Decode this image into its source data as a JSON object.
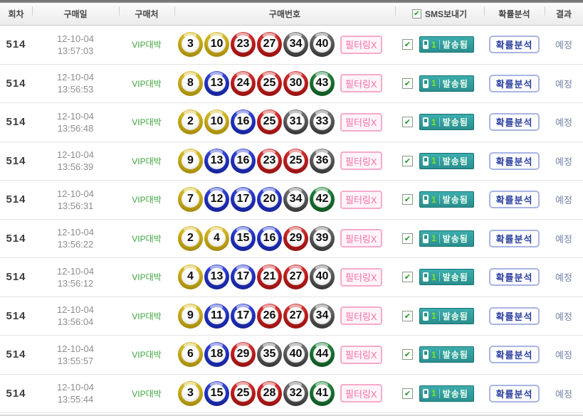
{
  "header": {
    "col_round": "회차",
    "col_date": "구매일",
    "col_store": "구매처",
    "col_numbers": "구매번호",
    "col_sms": "SMS보내기",
    "col_prob": "확률분석",
    "col_result": "결과",
    "sms_checkbox_checked": true
  },
  "labels": {
    "filter_button": "필터링X",
    "sms_sent_button": "발송됨",
    "sms_count": "1",
    "prob_button": "확률분석",
    "check_glyph": "✔"
  },
  "colors": {
    "ball_yellow": "#c8ab16",
    "ball_blue": "#2232c2",
    "ball_red": "#bf1d1d",
    "ball_gray": "#5c5c5c",
    "ball_green": "#187130",
    "store_green": "#3fa53f",
    "sms_teal": "#2f9f9f",
    "filter_pink": "#f470a6",
    "prob_blue": "#2b3f9e",
    "result_blue_gray": "#7384a8"
  },
  "rows": [
    {
      "round": "514",
      "date": "12-10-04",
      "time": "13:57:03",
      "store": "VIP대박",
      "numbers": [
        3,
        10,
        23,
        27,
        34,
        40
      ],
      "sms_checked": true,
      "result": "예정"
    },
    {
      "round": "514",
      "date": "12-10-04",
      "time": "13:56:53",
      "store": "VIP대박",
      "numbers": [
        8,
        13,
        24,
        25,
        30,
        43
      ],
      "sms_checked": true,
      "result": "예정"
    },
    {
      "round": "514",
      "date": "12-10-04",
      "time": "13:56:48",
      "store": "VIP대박",
      "numbers": [
        2,
        10,
        16,
        25,
        31,
        33
      ],
      "sms_checked": true,
      "result": "예정"
    },
    {
      "round": "514",
      "date": "12-10-04",
      "time": "13:56:39",
      "store": "VIP대박",
      "numbers": [
        9,
        13,
        16,
        23,
        25,
        36
      ],
      "sms_checked": true,
      "result": "예정"
    },
    {
      "round": "514",
      "date": "12-10-04",
      "time": "13:56:31",
      "store": "VIP대박",
      "numbers": [
        7,
        12,
        17,
        20,
        34,
        42
      ],
      "sms_checked": true,
      "result": "예정"
    },
    {
      "round": "514",
      "date": "12-10-04",
      "time": "13:56:22",
      "store": "VIP대박",
      "numbers": [
        2,
        4,
        15,
        16,
        29,
        39
      ],
      "sms_checked": true,
      "result": "예정"
    },
    {
      "round": "514",
      "date": "12-10-04",
      "time": "13:56:12",
      "store": "VIP대박",
      "numbers": [
        4,
        13,
        17,
        21,
        27,
        40
      ],
      "sms_checked": true,
      "result": "예정"
    },
    {
      "round": "514",
      "date": "12-10-04",
      "time": "13:56:04",
      "store": "VIP대박",
      "numbers": [
        9,
        11,
        17,
        26,
        27,
        34
      ],
      "sms_checked": true,
      "result": "예정"
    },
    {
      "round": "514",
      "date": "12-10-04",
      "time": "13:55:57",
      "store": "VIP대박",
      "numbers": [
        6,
        18,
        29,
        35,
        40,
        44
      ],
      "sms_checked": true,
      "result": "예정"
    },
    {
      "round": "514",
      "date": "12-10-04",
      "time": "13:55:44",
      "store": "VIP대박",
      "numbers": [
        3,
        15,
        25,
        28,
        32,
        41
      ],
      "sms_checked": true,
      "result": "예정"
    }
  ]
}
